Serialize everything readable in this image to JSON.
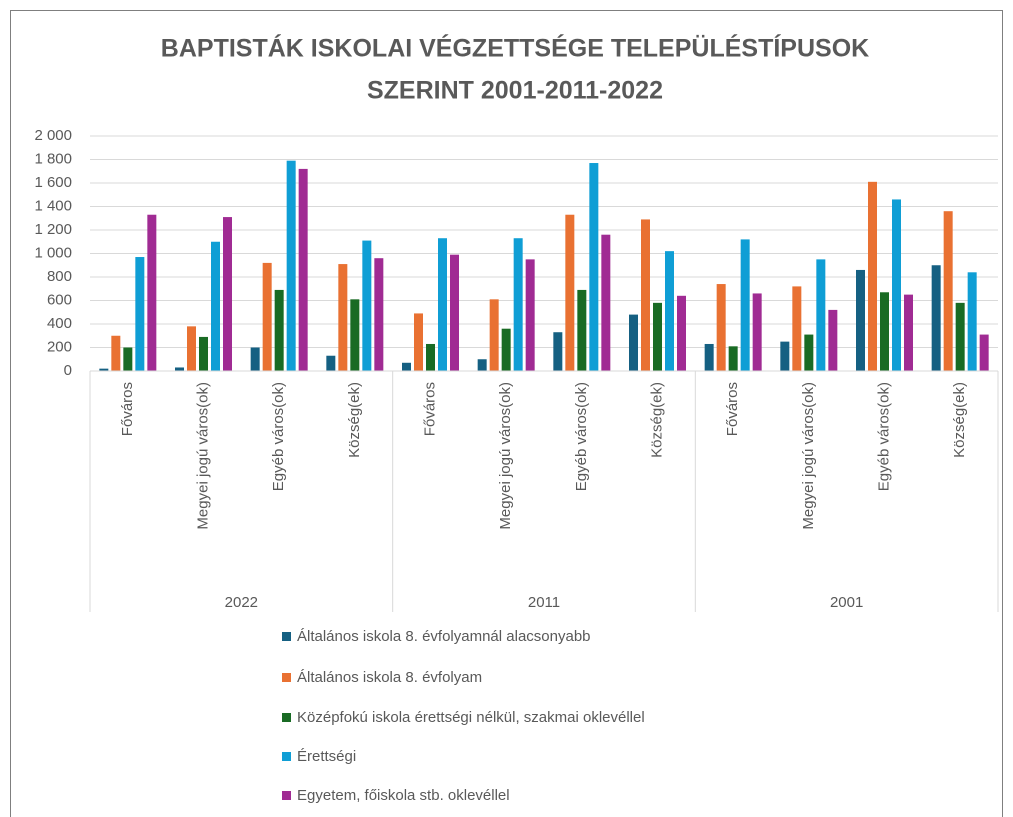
{
  "chart_data": {
    "type": "bar",
    "title": [
      "BAPTISTÁK ISKOLAI VÉGZETTSÉGE TELEPÜLÉSTÍPUSOK",
      "SZERINT 2001-2011-2022"
    ],
    "categories": [
      "Főváros",
      "Megyei jogú város(ok)",
      "Egyéb város(ok)",
      "Község(ek)",
      "Főváros",
      "Megyei jogú város(ok)",
      "Egyéb város(ok)",
      "Község(ek)",
      "Főváros",
      "Megyei jogú város(ok)",
      "Egyéb város(ok)",
      "Község(ek)"
    ],
    "category_groups": [
      "2022",
      "2011",
      "2001"
    ],
    "series": [
      {
        "name": "Általános iskola 8. évfolyamnál alacsonyabb",
        "color": "#156082",
        "values": [
          20,
          30,
          200,
          130,
          70,
          100,
          330,
          480,
          230,
          250,
          860,
          900
        ]
      },
      {
        "name": "Általános iskola 8. évfolyam",
        "color": "#e97132",
        "values": [
          300,
          380,
          920,
          910,
          490,
          610,
          1330,
          1290,
          740,
          720,
          1610,
          1360
        ]
      },
      {
        "name": "Középfokú iskola érettségi nélkül, szakmai oklevéllel",
        "color": "#196b24",
        "values": [
          200,
          290,
          690,
          610,
          230,
          360,
          690,
          580,
          210,
          310,
          670,
          580
        ]
      },
      {
        "name": "Érettségi",
        "color": "#0f9ed5",
        "values": [
          970,
          1100,
          1790,
          1110,
          1130,
          1130,
          1770,
          1020,
          1120,
          950,
          1460,
          840
        ]
      },
      {
        "name": "Egyetem, főiskola stb. oklevéllel",
        "color": "#a02b93",
        "values": [
          1330,
          1310,
          1720,
          960,
          990,
          950,
          1160,
          640,
          660,
          520,
          650,
          310
        ]
      }
    ],
    "ylim": [
      0,
      2000
    ],
    "yticks": [
      0,
      200,
      400,
      600,
      800,
      {
        "value": 1000,
        "label": "1 000"
      },
      {
        "value": 1200,
        "label": "1 200"
      },
      {
        "value": 1400,
        "label": "1 400"
      },
      {
        "value": 1600,
        "label": "1 600"
      },
      {
        "value": 1800,
        "label": "1 800"
      },
      {
        "value": 2000,
        "label": "2 000"
      }
    ],
    "grid": true,
    "legend": "bottom"
  }
}
